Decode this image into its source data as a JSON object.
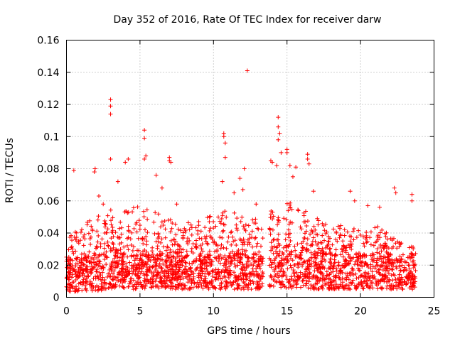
{
  "chart_data": {
    "type": "scatter",
    "title": "Day 352 of 2016, Rate Of TEC Index for receiver darw",
    "xlabel": "GPS time / hours",
    "ylabel": "ROTI / TECUs",
    "xlim": [
      0,
      25
    ],
    "ylim": [
      0,
      0.16
    ],
    "xticks": [
      0,
      5,
      10,
      15,
      20,
      25
    ],
    "yticks": [
      0,
      0.02,
      0.04,
      0.06,
      0.08,
      0.1,
      0.12,
      0.14,
      0.16
    ],
    "grid": true,
    "marker": "+",
    "color": "#ff0000",
    "data_gap": [
      13.4,
      13.8
    ],
    "x_range_observed": [
      0,
      23.75
    ],
    "points": [
      [
        0.5,
        0.079
      ],
      [
        1.95,
        0.08
      ],
      [
        1.9,
        0.078
      ],
      [
        3.0,
        0.123
      ],
      [
        3.0,
        0.119
      ],
      [
        3.0,
        0.114
      ],
      [
        3.0,
        0.086
      ],
      [
        2.2,
        0.063
      ],
      [
        2.5,
        0.058
      ],
      [
        3.5,
        0.072
      ],
      [
        4.2,
        0.086
      ],
      [
        4.0,
        0.084
      ],
      [
        5.3,
        0.104
      ],
      [
        5.3,
        0.099
      ],
      [
        5.4,
        0.088
      ],
      [
        5.3,
        0.086
      ],
      [
        6.1,
        0.076
      ],
      [
        7.0,
        0.087
      ],
      [
        7.0,
        0.085
      ],
      [
        7.1,
        0.084
      ],
      [
        6.5,
        0.068
      ],
      [
        7.5,
        0.058
      ],
      [
        10.7,
        0.102
      ],
      [
        10.7,
        0.1
      ],
      [
        10.8,
        0.096
      ],
      [
        10.8,
        0.087
      ],
      [
        10.6,
        0.072
      ],
      [
        11.8,
        0.074
      ],
      [
        12.1,
        0.08
      ],
      [
        11.4,
        0.065
      ],
      [
        12.3,
        0.141
      ],
      [
        12.0,
        0.067
      ],
      [
        12.9,
        0.058
      ],
      [
        13.9,
        0.085
      ],
      [
        14.0,
        0.084
      ],
      [
        14.4,
        0.112
      ],
      [
        14.4,
        0.106
      ],
      [
        14.5,
        0.102
      ],
      [
        14.4,
        0.098
      ],
      [
        14.6,
        0.09
      ],
      [
        14.3,
        0.082
      ],
      [
        15.0,
        0.092
      ],
      [
        15.0,
        0.09
      ],
      [
        15.2,
        0.082
      ],
      [
        15.6,
        0.081
      ],
      [
        15.4,
        0.075
      ],
      [
        16.4,
        0.089
      ],
      [
        16.4,
        0.086
      ],
      [
        16.5,
        0.083
      ],
      [
        16.8,
        0.066
      ],
      [
        19.3,
        0.066
      ],
      [
        19.6,
        0.06
      ],
      [
        20.5,
        0.057
      ],
      [
        21.3,
        0.056
      ],
      [
        22.3,
        0.068
      ],
      [
        22.4,
        0.065
      ],
      [
        23.5,
        0.064
      ],
      [
        23.5,
        0.06
      ]
    ],
    "density_profile": {
      "hour": [
        0,
        1,
        2,
        3,
        4,
        5,
        6,
        7,
        8,
        9,
        10,
        11,
        12,
        13,
        13.4,
        13.8,
        14,
        15,
        16,
        17,
        18,
        19,
        20,
        21,
        22,
        23,
        23.75
      ],
      "upper": [
        0.038,
        0.045,
        0.05,
        0.055,
        0.058,
        0.057,
        0.054,
        0.05,
        0.046,
        0.048,
        0.052,
        0.055,
        0.053,
        0.048,
        0.04,
        0.055,
        0.062,
        0.06,
        0.055,
        0.05,
        0.045,
        0.045,
        0.042,
        0.045,
        0.042,
        0.035,
        0.03
      ],
      "lower": [
        0.003,
        0.004,
        0.004,
        0.005,
        0.005,
        0.005,
        0.005,
        0.005,
        0.005,
        0.005,
        0.005,
        0.005,
        0.005,
        0.005,
        0.005,
        0.005,
        0.006,
        0.006,
        0.005,
        0.005,
        0.005,
        0.005,
        0.005,
        0.005,
        0.005,
        0.005,
        0.005
      ],
      "dense_upper": [
        0.02,
        0.024,
        0.026,
        0.028,
        0.028,
        0.028,
        0.027,
        0.026,
        0.025,
        0.025,
        0.026,
        0.027,
        0.027,
        0.026,
        0.024,
        0.03,
        0.034,
        0.032,
        0.03,
        0.028,
        0.026,
        0.026,
        0.025,
        0.026,
        0.024,
        0.022,
        0.02
      ]
    }
  }
}
